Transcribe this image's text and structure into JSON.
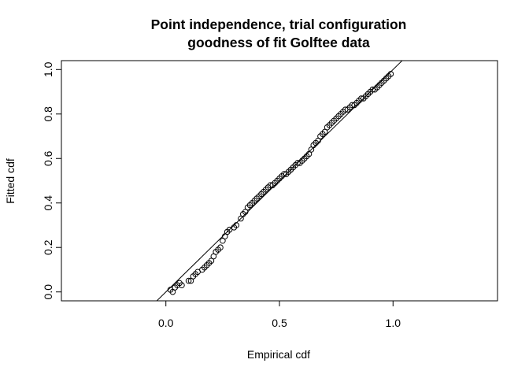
{
  "chart_data": {
    "type": "scatter",
    "title_lines": [
      "Point independence, trial configuration",
      "goodness of fit Golftee data"
    ],
    "xlabel": "Empirical cdf",
    "ylabel": "Fitted cdf",
    "xlim": [
      -0.46,
      1.46
    ],
    "ylim": [
      -0.04,
      1.04
    ],
    "xticks": [
      0.0,
      0.5,
      1.0
    ],
    "xtick_labels": [
      "0.0",
      "0.5",
      "1.0"
    ],
    "yticks": [
      0.0,
      0.2,
      0.4,
      0.6,
      0.8,
      1.0
    ],
    "ytick_labels": [
      "0.0",
      "0.2",
      "0.4",
      "0.6",
      "0.8",
      "1.0"
    ],
    "grid": false,
    "reference_line": {
      "intercept": 0,
      "slope": 1
    },
    "points": {
      "x": [
        0.02,
        0.03,
        0.04,
        0.05,
        0.06,
        0.07,
        0.1,
        0.11,
        0.12,
        0.13,
        0.14,
        0.16,
        0.17,
        0.18,
        0.19,
        0.2,
        0.21,
        0.22,
        0.23,
        0.24,
        0.25,
        0.26,
        0.27,
        0.28,
        0.3,
        0.31,
        0.33,
        0.34,
        0.35,
        0.36,
        0.37,
        0.38,
        0.39,
        0.4,
        0.41,
        0.42,
        0.43,
        0.44,
        0.45,
        0.46,
        0.47,
        0.48,
        0.49,
        0.5,
        0.51,
        0.52,
        0.53,
        0.54,
        0.55,
        0.56,
        0.57,
        0.58,
        0.59,
        0.6,
        0.61,
        0.62,
        0.63,
        0.64,
        0.65,
        0.66,
        0.67,
        0.68,
        0.69,
        0.7,
        0.71,
        0.72,
        0.73,
        0.74,
        0.75,
        0.76,
        0.77,
        0.78,
        0.79,
        0.8,
        0.81,
        0.82,
        0.83,
        0.84,
        0.85,
        0.86,
        0.87,
        0.88,
        0.89,
        0.9,
        0.91,
        0.92,
        0.93,
        0.94,
        0.95,
        0.96,
        0.97,
        0.98,
        0.99
      ],
      "y": [
        0.01,
        0.0,
        0.02,
        0.03,
        0.04,
        0.03,
        0.05,
        0.05,
        0.07,
        0.08,
        0.09,
        0.1,
        0.11,
        0.12,
        0.13,
        0.14,
        0.16,
        0.18,
        0.19,
        0.2,
        0.23,
        0.25,
        0.27,
        0.28,
        0.29,
        0.3,
        0.33,
        0.35,
        0.36,
        0.38,
        0.39,
        0.4,
        0.41,
        0.42,
        0.43,
        0.44,
        0.45,
        0.46,
        0.47,
        0.48,
        0.48,
        0.49,
        0.5,
        0.51,
        0.52,
        0.53,
        0.53,
        0.54,
        0.55,
        0.56,
        0.57,
        0.58,
        0.58,
        0.59,
        0.6,
        0.61,
        0.62,
        0.64,
        0.66,
        0.67,
        0.68,
        0.7,
        0.71,
        0.72,
        0.74,
        0.75,
        0.76,
        0.77,
        0.78,
        0.79,
        0.8,
        0.81,
        0.82,
        0.82,
        0.83,
        0.84,
        0.84,
        0.85,
        0.86,
        0.87,
        0.87,
        0.88,
        0.89,
        0.9,
        0.91,
        0.91,
        0.92,
        0.93,
        0.94,
        0.95,
        0.96,
        0.97,
        0.98
      ]
    }
  }
}
